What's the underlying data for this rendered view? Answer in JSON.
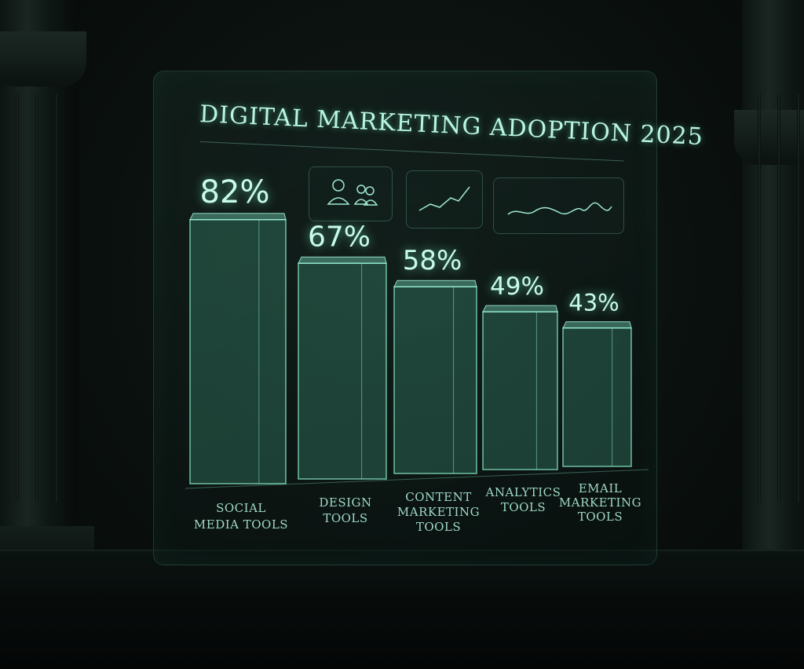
{
  "chart_data": {
    "type": "bar",
    "title": "DIGITAL MARKETING ADOPTION 2025",
    "categories": [
      [
        "SOCIAL",
        "MEDIA TOOLS"
      ],
      [
        "DESIGN",
        "TOOLS"
      ],
      [
        "CONTENT",
        "MARKETING",
        "TOOLS"
      ],
      [
        "ANALYTICS",
        "TOOLS"
      ],
      [
        "EMAIL",
        "MARKETING",
        "TOOLS"
      ]
    ],
    "values": [
      82,
      67,
      58,
      49,
      43
    ],
    "value_labels": [
      "82%",
      "67%",
      "58%",
      "49%",
      "43%"
    ],
    "unit": "%",
    "ylim": [
      0,
      100
    ],
    "grid": false,
    "colors": {
      "bar": "#5adcb4",
      "text": "#c8fbea",
      "background": "#0a100e"
    }
  },
  "icons": [
    "user-icon",
    "users-icon",
    "line-chart-icon",
    "wave-chart-icon"
  ]
}
